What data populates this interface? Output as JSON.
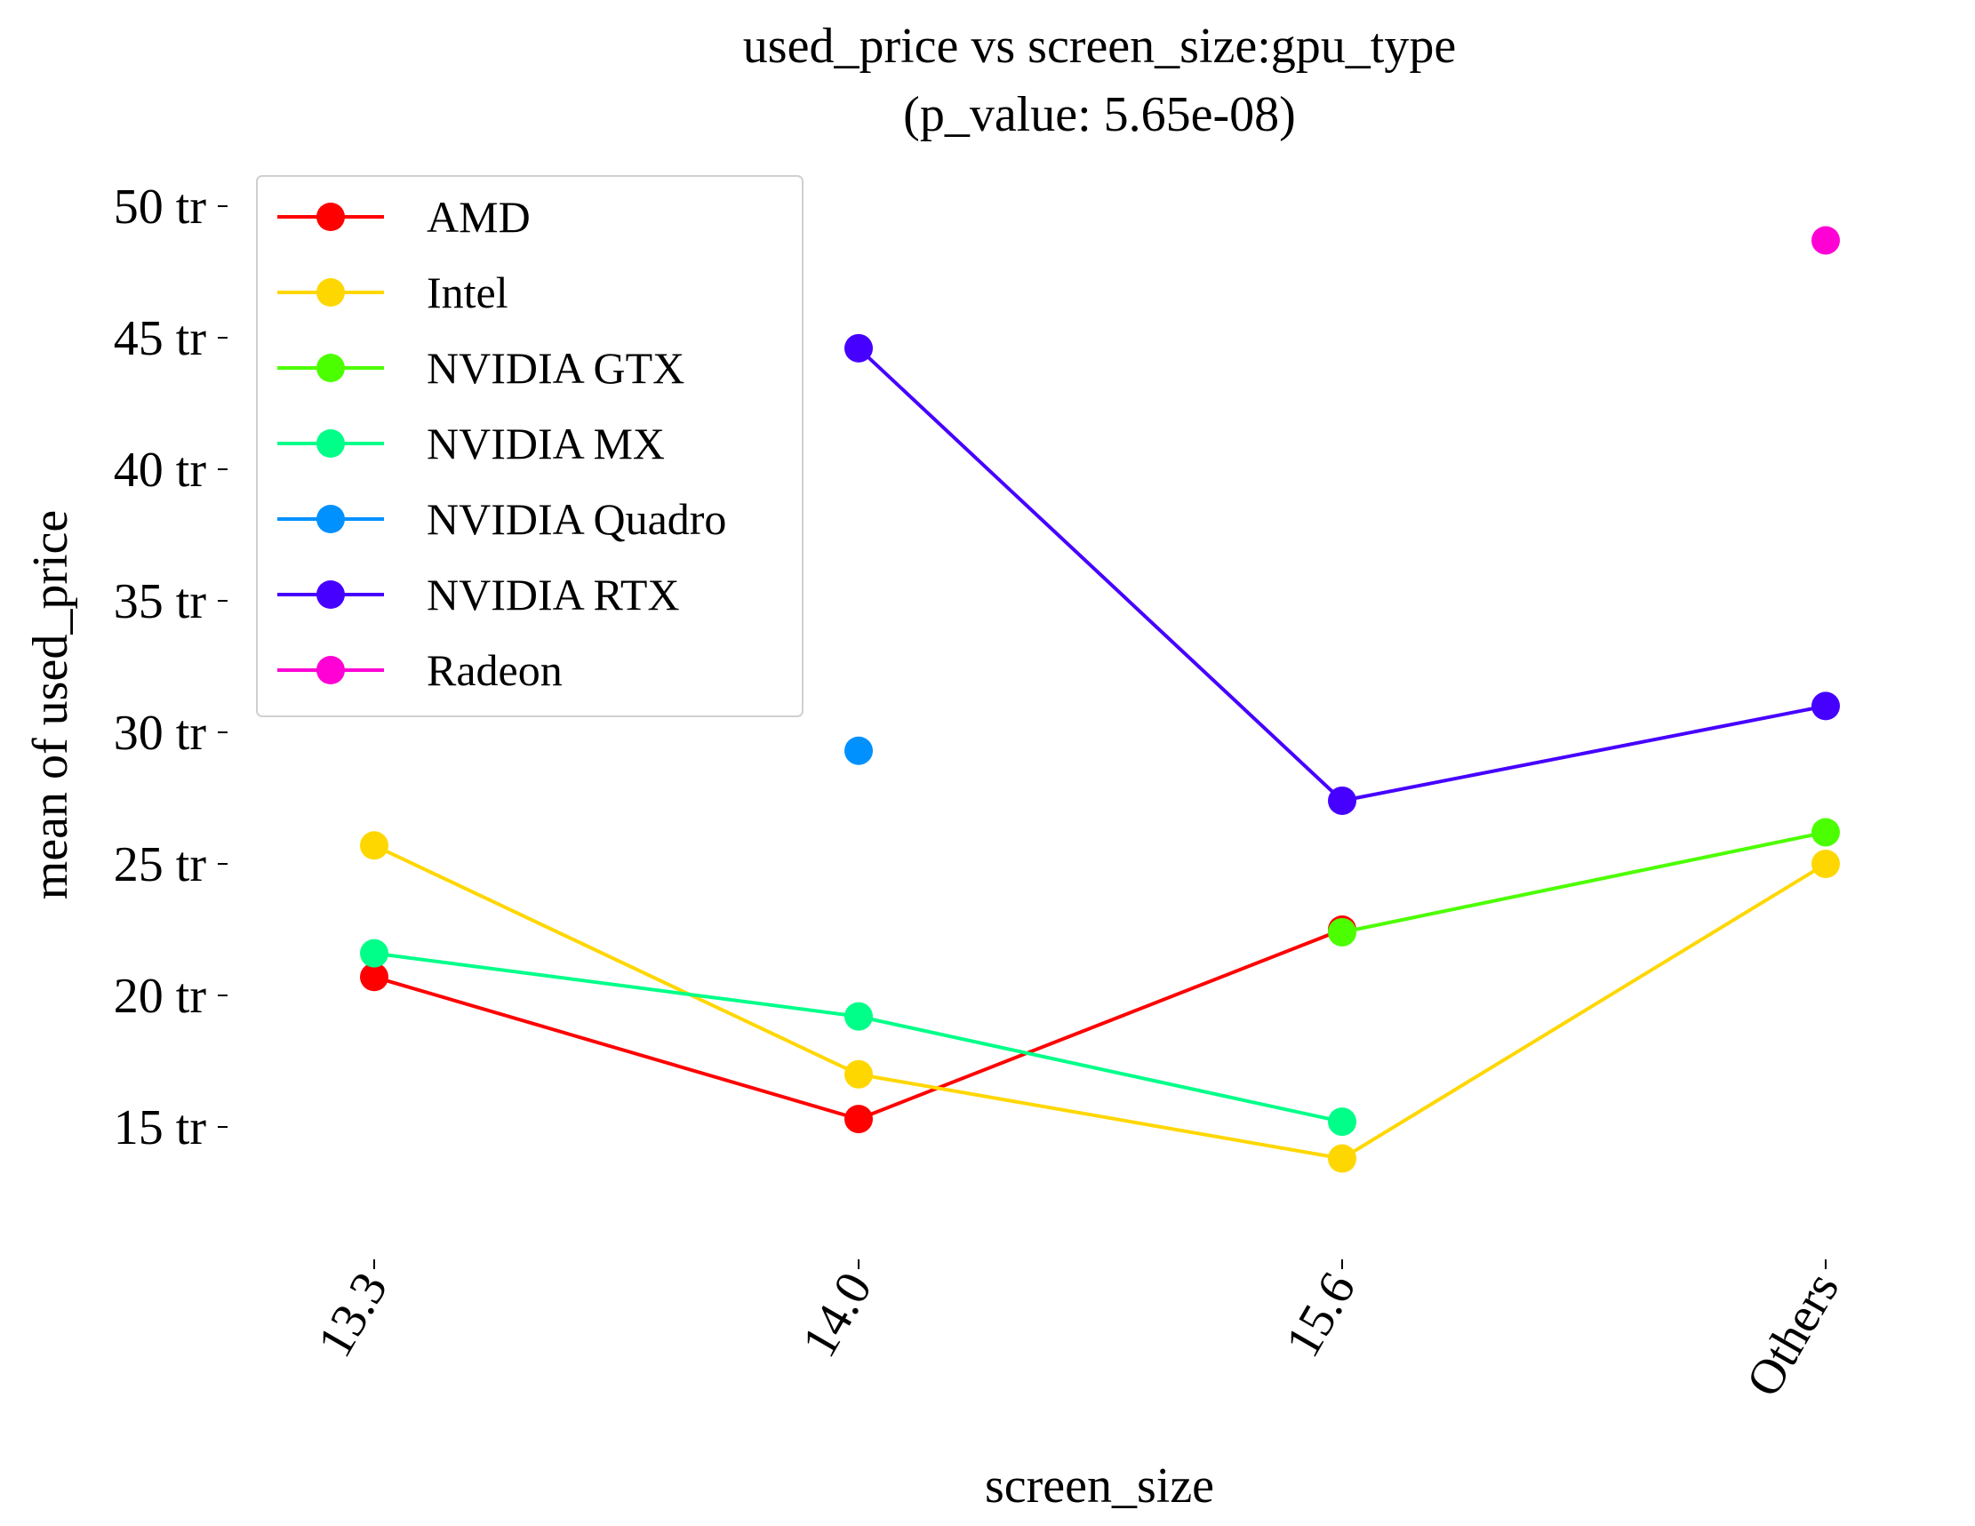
{
  "chart_data": {
    "type": "line",
    "title": "used_price vs screen_size:gpu_type",
    "subtitle": "(p_value: 5.65e-08)",
    "xlabel": "screen_size",
    "ylabel": "mean of used_price",
    "categories": [
      "13.3",
      "14.0",
      "15.6",
      "Others"
    ],
    "ylim": [
      10.2,
      51.5
    ],
    "yticks": [
      {
        "value": 15,
        "label": "15 tr"
      },
      {
        "value": 20,
        "label": "20 tr"
      },
      {
        "value": 25,
        "label": "25 tr"
      },
      {
        "value": 30,
        "label": "30 tr"
      },
      {
        "value": 35,
        "label": "35 tr"
      },
      {
        "value": 40,
        "label": "40 tr"
      },
      {
        "value": 45,
        "label": "45 tr"
      },
      {
        "value": 50,
        "label": "50 tr"
      }
    ],
    "grid": false,
    "legend_position": "upper-left",
    "series": [
      {
        "name": "AMD",
        "color": "#ff0000",
        "values": [
          20.7,
          15.3,
          22.5,
          null
        ]
      },
      {
        "name": "Intel",
        "color": "#ffd700",
        "values": [
          25.7,
          17.0,
          13.8,
          25.0
        ]
      },
      {
        "name": "NVIDIA GTX",
        "color": "#4cff00",
        "values": [
          null,
          null,
          22.4,
          26.2
        ]
      },
      {
        "name": "NVIDIA MX",
        "color": "#00ff89",
        "values": [
          21.6,
          19.2,
          15.2,
          null
        ]
      },
      {
        "name": "NVIDIA Quadro",
        "color": "#0091ff",
        "values": [
          null,
          29.3,
          null,
          null
        ]
      },
      {
        "name": "NVIDIA RTX",
        "color": "#4600ff",
        "values": [
          null,
          44.6,
          27.4,
          31.0
        ]
      },
      {
        "name": "Radeon",
        "color": "#ff00d5",
        "values": [
          null,
          null,
          null,
          48.7
        ]
      }
    ]
  }
}
